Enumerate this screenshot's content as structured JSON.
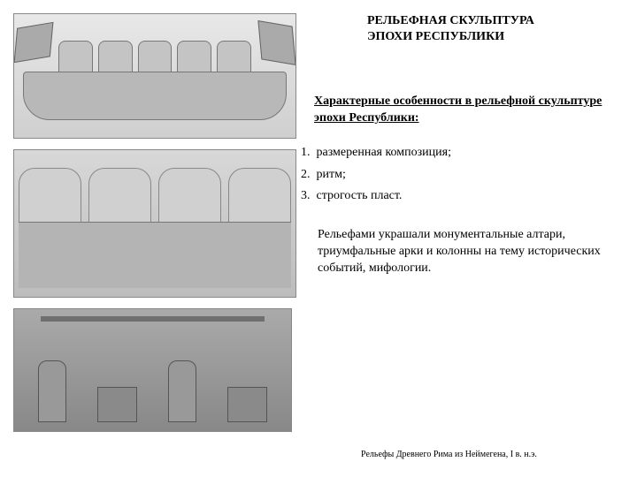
{
  "title_line1": "РЕЛЬЕФНАЯ СКУЛЬПТУРА",
  "title_line2": "ЭПОХИ РЕСПУБЛИКИ",
  "subtitle": "Характерные особенности в рельефной скульптуре эпохи Республики:",
  "list": {
    "item1": "1.  размеренная композиция;",
    "item2": "2.  ритм;",
    "item3": "3.  строгость пласт."
  },
  "paragraph": "Рельефами украшали монументальные алтари, триумфальные арки и колонны на тему исторических событий, мифологии.",
  "caption": "Рельефы Древнего Рима из Неймегена, I в. н.э.",
  "images": {
    "img1_alt": "relief-ship-with-figures",
    "img2_alt": "relief-seated-scholars",
    "img3_alt": "relief-workshop-scene"
  }
}
